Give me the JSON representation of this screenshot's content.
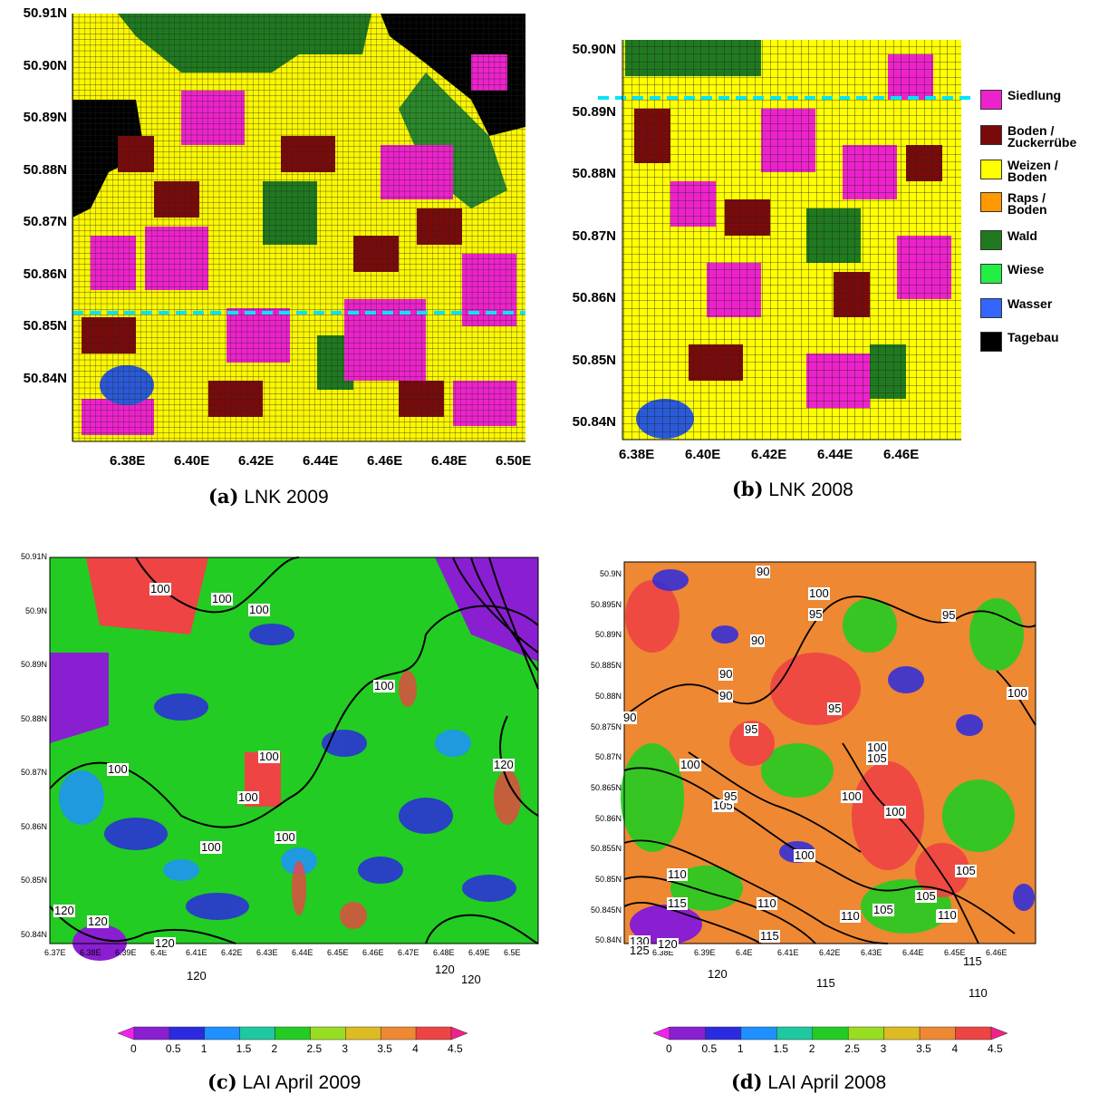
{
  "panels": {
    "a": {
      "caption_letter": "(a)",
      "caption_text": "LNK 2009",
      "y_ticks": [
        "50.91N",
        "50.90N",
        "50.89N",
        "50.88N",
        "50.87N",
        "50.86N",
        "50.85N",
        "50.84N"
      ],
      "x_ticks": [
        "6.38E",
        "6.40E",
        "6.42E",
        "6.44E",
        "6.46E",
        "6.48E",
        "6.50E"
      ]
    },
    "b": {
      "caption_letter": "(b)",
      "caption_text": "LNK 2008",
      "y_ticks": [
        "50.90N",
        "50.89N",
        "50.88N",
        "50.87N",
        "50.86N",
        "50.85N",
        "50.84N"
      ],
      "x_ticks": [
        "6.38E",
        "6.40E",
        "6.42E",
        "6.44E",
        "6.46E"
      ]
    },
    "c": {
      "caption_letter": "(c)",
      "caption_text": "LAI April 2009",
      "y_ticks": [
        "50.91N",
        "50.9N",
        "50.89N",
        "50.88N",
        "50.87N",
        "50.86N",
        "50.85N",
        "50.84N"
      ],
      "x_ticks": [
        "6.37E",
        "6.38E",
        "6.39E",
        "6.4E",
        "6.41E",
        "6.42E",
        "6.43E",
        "6.44E",
        "6.45E",
        "6.46E",
        "6.47E",
        "6.48E",
        "6.49E",
        "6.5E"
      ],
      "contour_labels": [
        "100",
        "100",
        "100",
        "100",
        "100",
        "100",
        "100",
        "100",
        "100",
        "120",
        "120",
        "120",
        "120",
        "120",
        "120",
        "120"
      ]
    },
    "d": {
      "caption_letter": "(d)",
      "caption_text": "LAI April 2008",
      "y_ticks": [
        "50.9N",
        "50.895N",
        "50.89N",
        "50.885N",
        "50.88N",
        "50.875N",
        "50.87N",
        "50.865N",
        "50.86N",
        "50.855N",
        "50.85N",
        "50.845N",
        "50.84N"
      ],
      "x_ticks": [
        "6.38E",
        "6.39E",
        "6.4E",
        "6.41E",
        "6.42E",
        "6.43E",
        "6.44E",
        "6.45E",
        "6.46E"
      ],
      "contour_labels": [
        "90",
        "100",
        "95",
        "95",
        "90",
        "90",
        "90",
        "90",
        "100",
        "95",
        "95",
        "100",
        "105",
        "100",
        "105",
        "95",
        "100",
        "100",
        "100",
        "110",
        "115",
        "110",
        "105",
        "110",
        "110",
        "105",
        "105",
        "110",
        "115",
        "115",
        "115",
        "110",
        "130",
        "125",
        "120",
        "120"
      ]
    }
  },
  "legend": [
    {
      "label": "Siedlung",
      "color": "#ee22cc"
    },
    {
      "label": "Boden /\nZuckerrübe",
      "color": "#7a0a0a"
    },
    {
      "label": "Weizen /\nBoden",
      "color": "#ffff00"
    },
    {
      "label": "Raps /\nBoden",
      "color": "#ff9900"
    },
    {
      "label": "Wald",
      "color": "#1f7a1f"
    },
    {
      "label": "Wiese",
      "color": "#22ee44"
    },
    {
      "label": "Wasser",
      "color": "#3366ff"
    },
    {
      "label": "Tagebau",
      "color": "#000000"
    }
  ],
  "colorbar": {
    "labels": [
      "0",
      "0.5",
      "1",
      "1.5",
      "2",
      "2.5",
      "3",
      "3.5",
      "4",
      "4.5"
    ],
    "colors": [
      "#ee22ee",
      "#8a1fd1",
      "#2a2ae0",
      "#1e90ff",
      "#1ec8a0",
      "#22cc22",
      "#99dd22",
      "#ddbb22",
      "#ee8833",
      "#ee4444",
      "#ee2288"
    ]
  }
}
